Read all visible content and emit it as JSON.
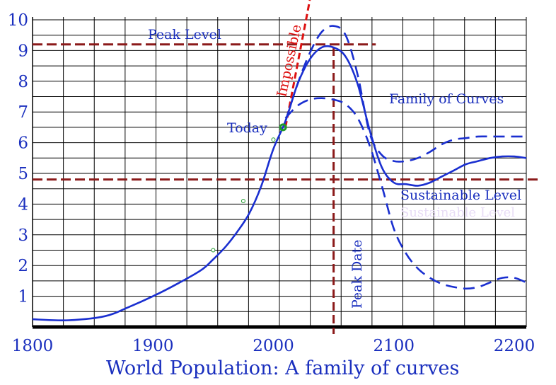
{
  "chart_data": {
    "type": "line",
    "title": "World Population:  A family of curves",
    "xlabel": "",
    "ylabel": "",
    "xlim": [
      1800,
      2210
    ],
    "ylim": [
      0,
      10
    ],
    "x_ticks": [
      "1800",
      "1900",
      "2000",
      "2100",
      "2200"
    ],
    "y_ticks": [
      "1",
      "2",
      "3",
      "4",
      "5",
      "6",
      "7",
      "8",
      "9",
      "10"
    ],
    "grid": true,
    "series": [
      {
        "name": "",
        "style": "solid",
        "x": [
          1800,
          1830,
          1860,
          1880,
          1900,
          1920,
          1940,
          1950,
          1960,
          1970,
          1980,
          1990,
          2000,
          2010,
          2020,
          2030,
          2040,
          2050,
          2060,
          2070,
          2080,
          2090,
          2100,
          2110,
          2120,
          2130,
          2140,
          2150,
          2160,
          2170,
          2180,
          2190,
          2200,
          2210
        ],
        "y": [
          0.25,
          0.22,
          0.35,
          0.65,
          1.0,
          1.4,
          1.85,
          2.2,
          2.6,
          3.1,
          3.7,
          4.6,
          5.8,
          6.7,
          7.9,
          8.7,
          9.1,
          9.1,
          8.8,
          7.9,
          6.4,
          5.2,
          4.7,
          4.65,
          4.6,
          4.7,
          4.9,
          5.1,
          5.3,
          5.4,
          5.5,
          5.55,
          5.55,
          5.5
        ]
      },
      {
        "name": "",
        "style": "dashed",
        "x": [
          2010,
          2020,
          2030,
          2040,
          2050,
          2060,
          2070,
          2080,
          2090,
          2100,
          2110,
          2120,
          2130,
          2140,
          2150,
          2160,
          2170,
          2180,
          2190,
          2200,
          2210
        ],
        "y": [
          6.7,
          7.9,
          8.9,
          9.6,
          9.8,
          9.5,
          8.2,
          6.3,
          5.6,
          5.4,
          5.4,
          5.5,
          5.7,
          5.95,
          6.1,
          6.15,
          6.2,
          6.2,
          6.2,
          6.2,
          6.2
        ]
      },
      {
        "name": "",
        "style": "dashed",
        "x": [
          2010,
          2020,
          2030,
          2040,
          2050,
          2060,
          2070,
          2080,
          2090,
          2100,
          2110,
          2120,
          2130,
          2140,
          2150,
          2160,
          2170,
          2180,
          2190,
          2200,
          2210
        ],
        "y": [
          6.8,
          7.2,
          7.4,
          7.45,
          7.4,
          7.25,
          6.8,
          5.9,
          4.6,
          3.2,
          2.4,
          1.9,
          1.6,
          1.4,
          1.3,
          1.25,
          1.3,
          1.45,
          1.6,
          1.6,
          1.45
        ]
      }
    ],
    "reference_lines": [
      {
        "label": "Peak Level",
        "orientation": "horizontal",
        "y": 9.2
      },
      {
        "label": "Sustainable Level",
        "orientation": "horizontal",
        "y": 4.8
      },
      {
        "label": "Peak Date",
        "orientation": "vertical",
        "x": 2050
      },
      {
        "label": "Impossible",
        "orientation": "line",
        "x": [
          2010,
          2030
        ],
        "y": [
          6.5,
          10.5
        ]
      }
    ],
    "points": [
      {
        "label": "Today",
        "x": 2008,
        "y": 6.5
      }
    ],
    "sample_points": [
      {
        "x": 1950,
        "y": 2.5
      },
      {
        "x": 1975,
        "y": 4.1
      },
      {
        "x": 2000,
        "y": 6.1
      }
    ],
    "annotations": {
      "peak_level": "Peak Level",
      "impossible": "Impossible",
      "family_of_curves": "Family of Curves",
      "today": "Today",
      "sustainable_level": "Sustainable Level",
      "peak_date": "Peak Date"
    },
    "colors": {
      "curve": "#1a2fd0",
      "reference": "#8b1a1a",
      "impossible": "#dd1111",
      "text": "#1a2fbe",
      "today_marker": "#1e9a2a",
      "axis": "#000000",
      "grid": "#000000"
    }
  }
}
